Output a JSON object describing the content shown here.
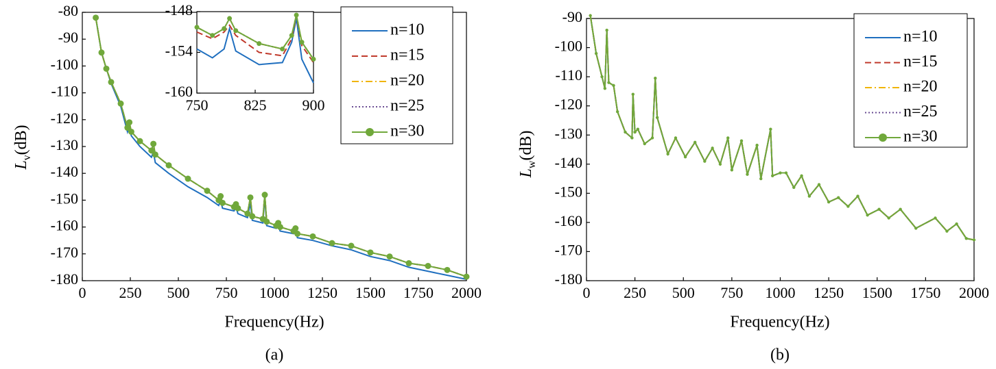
{
  "chart_data": [
    {
      "type": "line",
      "caption": "(a)",
      "x_label": "Frequency(Hz)",
      "y_label": "L",
      "y_label_sub": "v",
      "y_label_unit": "(dB)",
      "xlim": [
        0,
        2000
      ],
      "ylim": [
        -180,
        -80
      ],
      "xticks": [
        0,
        250,
        500,
        750,
        1000,
        1250,
        1500,
        1750,
        2000
      ],
      "yticks": [
        -180,
        -170,
        -160,
        -150,
        -140,
        -130,
        -120,
        -110,
        -100,
        -90,
        -80
      ],
      "legend": "upper right",
      "x": [
        70,
        100,
        125,
        150,
        200,
        235,
        245,
        255,
        300,
        360,
        370,
        380,
        450,
        550,
        650,
        710,
        720,
        730,
        790,
        800,
        810,
        860,
        875,
        885,
        940,
        950,
        960,
        1010,
        1020,
        1030,
        1100,
        1110,
        1120,
        1200,
        1300,
        1400,
        1500,
        1600,
        1700,
        1800,
        1900,
        2000
      ],
      "series": [
        {
          "name": "n=10",
          "color": "#1f6fbf",
          "linestyle": "solid",
          "values": [
            -82,
            -95,
            -101,
            -106.5,
            -115,
            -124.5,
            -122,
            -126,
            -130,
            -134,
            -132,
            -136,
            -140,
            -145,
            -149,
            -152,
            -150,
            -153,
            -154,
            -152.5,
            -155,
            -156.5,
            -151,
            -157.5,
            -158.5,
            -149,
            -159.5,
            -160.5,
            -159.5,
            -161.5,
            -162.5,
            -161.5,
            -164,
            -165,
            -167,
            -168.5,
            -171,
            -172.5,
            -175,
            -176.5,
            -178,
            -179.5
          ]
        },
        {
          "name": "n=15",
          "color": "#c0392b",
          "linestyle": "dashed",
          "values": [
            -82,
            -95,
            -101,
            -106,
            -114,
            -123,
            -121,
            -124.5,
            -128,
            -131.5,
            -129,
            -133,
            -137,
            -142,
            -146.5,
            -150,
            -148.5,
            -151,
            -152.5,
            -151.5,
            -153,
            -155,
            -149,
            -156,
            -157,
            -148,
            -158,
            -159.5,
            -158.5,
            -160,
            -161.5,
            -160.5,
            -162.5,
            -163.5,
            -166,
            -167,
            -169.5,
            -171,
            -173.5,
            -174.5,
            -176,
            -178.5
          ]
        },
        {
          "name": "n=20",
          "color": "#f0b400",
          "linestyle": "dashdot",
          "values": [
            -82,
            -95,
            -101,
            -106,
            -114,
            -123,
            -121,
            -124.5,
            -128,
            -131.5,
            -129,
            -133,
            -137,
            -142,
            -146.5,
            -150,
            -148.5,
            -151,
            -152.5,
            -151.5,
            -153,
            -155,
            -149,
            -156,
            -157,
            -148,
            -158,
            -159.5,
            -158.5,
            -160,
            -161.5,
            -160.5,
            -162.5,
            -163.5,
            -166,
            -167,
            -169.5,
            -171,
            -173.5,
            -174.5,
            -176,
            -178.5
          ]
        },
        {
          "name": "n=25",
          "color": "#6a4c93",
          "linestyle": "dotted",
          "values": [
            -82,
            -95,
            -101,
            -106,
            -114,
            -123,
            -121,
            -124.5,
            -128,
            -131.5,
            -129,
            -133,
            -137,
            -142,
            -146.5,
            -150,
            -148.5,
            -151,
            -152.5,
            -151.5,
            -153,
            -155,
            -149,
            -156,
            -157,
            -148,
            -158,
            -159.5,
            -158.5,
            -160,
            -161.5,
            -160.5,
            -162.5,
            -163.5,
            -166,
            -167,
            -169.5,
            -171,
            -173.5,
            -174.5,
            -176,
            -178.5
          ]
        },
        {
          "name": "n=30",
          "color": "#70a83b",
          "linestyle": "solid",
          "marker": "circle",
          "values": [
            -82,
            -95,
            -101,
            -106,
            -114,
            -123,
            -121,
            -124.5,
            -128,
            -131.5,
            -129,
            -133,
            -137,
            -142,
            -146.5,
            -150,
            -148.5,
            -151,
            -152.5,
            -151.5,
            -153,
            -155,
            -149,
            -156,
            -157,
            -148,
            -158,
            -159.5,
            -158.5,
            -160,
            -161.5,
            -160.5,
            -162.5,
            -163.5,
            -166,
            -167,
            -169.5,
            -171,
            -173.5,
            -174.5,
            -176,
            -178.5
          ]
        }
      ]
    },
    {
      "type": "line",
      "xlim": [
        750,
        900
      ],
      "ylim": [
        -160,
        -148
      ],
      "xticks": [
        750,
        825,
        900
      ],
      "yticks": [
        -160,
        -154,
        -148
      ],
      "x": [
        750,
        770,
        785,
        792,
        800,
        830,
        860,
        872,
        878,
        885,
        900
      ],
      "series": [
        {
          "color": "#1f6fbf",
          "linestyle": "solid",
          "values": [
            -153.5,
            -154.8,
            -153.5,
            -150.5,
            -153.8,
            -155.8,
            -155.5,
            -152.5,
            -149,
            -155,
            -158.5
          ]
        },
        {
          "color": "#c0392b",
          "linestyle": "dashed",
          "values": [
            -151,
            -152,
            -151,
            -150,
            -151.5,
            -154,
            -154.5,
            -152,
            -148.5,
            -153,
            -155.5
          ]
        },
        {
          "color": "#f0b400",
          "linestyle": "dashdot",
          "values": [
            -150.3,
            -151.5,
            -150.5,
            -149,
            -150.8,
            -152.7,
            -153.5,
            -151.5,
            -148.5,
            -152.5,
            -155
          ]
        },
        {
          "color": "#6a4c93",
          "linestyle": "dotted",
          "values": [
            -150.3,
            -151.5,
            -150.5,
            -149,
            -150.8,
            -152.7,
            -153.5,
            -151.5,
            -148.5,
            -152.5,
            -155
          ]
        },
        {
          "color": "#70a83b",
          "linestyle": "solid",
          "marker": "circle",
          "values": [
            -150.3,
            -151.5,
            -150.5,
            -149,
            -150.8,
            -152.7,
            -153.5,
            -151.5,
            -148.5,
            -152.5,
            -155
          ]
        }
      ]
    },
    {
      "type": "line",
      "caption": "(b)",
      "x_label": "Frequency(Hz)",
      "y_label": "L",
      "y_label_sub": "w",
      "y_label_unit": "(dB)",
      "xlim": [
        0,
        2000
      ],
      "ylim": [
        -180,
        -90
      ],
      "xticks": [
        0,
        250,
        500,
        750,
        1000,
        1250,
        1500,
        1750,
        2000
      ],
      "yticks": [
        -180,
        -170,
        -160,
        -150,
        -140,
        -130,
        -120,
        -110,
        -100,
        -90
      ],
      "legend": "upper right",
      "x": [
        20,
        50,
        80,
        95,
        105,
        115,
        140,
        160,
        200,
        235,
        240,
        250,
        265,
        300,
        340,
        355,
        365,
        420,
        460,
        510,
        560,
        610,
        650,
        690,
        730,
        750,
        800,
        830,
        880,
        900,
        950,
        960,
        1000,
        1030,
        1070,
        1110,
        1150,
        1200,
        1250,
        1300,
        1350,
        1400,
        1450,
        1510,
        1560,
        1620,
        1700,
        1800,
        1860,
        1910,
        1960,
        2000
      ],
      "series": [
        {
          "name": "n=10",
          "color": "#1f6fbf",
          "linestyle": "solid",
          "values": [
            -89,
            -102,
            -110,
            -114,
            -94,
            -112,
            -113,
            -122,
            -129,
            -131,
            -116,
            -129,
            -128,
            -133,
            -131,
            -110.5,
            -124,
            -136.5,
            -131,
            -137.5,
            -132.5,
            -139,
            -134.5,
            -140,
            -131,
            -142,
            -132,
            -143.5,
            -133.5,
            -145,
            -128,
            -144,
            -143,
            -143,
            -148,
            -144,
            -151,
            -147,
            -153,
            -151.5,
            -154.5,
            -151,
            -157.5,
            -155.5,
            -158.5,
            -155.5,
            -162,
            -158.5,
            -163,
            -160.5,
            -165.5,
            -166
          ]
        },
        {
          "name": "n=15",
          "color": "#c0392b",
          "linestyle": "dashed",
          "values": [
            -89,
            -102,
            -110,
            -114,
            -94,
            -112,
            -113,
            -122,
            -129,
            -131,
            -116,
            -129,
            -128,
            -133,
            -131,
            -110.5,
            -124,
            -136.5,
            -131,
            -137.5,
            -132.5,
            -139,
            -134.5,
            -140,
            -131,
            -142,
            -132,
            -143.5,
            -133.5,
            -145,
            -128,
            -144,
            -143,
            -143,
            -148,
            -144,
            -151,
            -147,
            -153,
            -151.5,
            -154.5,
            -151,
            -157.5,
            -155.5,
            -158.5,
            -155.5,
            -162,
            -158.5,
            -163,
            -160.5,
            -165.5,
            -166
          ]
        },
        {
          "name": "n=20",
          "color": "#f0b400",
          "linestyle": "dashdot",
          "values": [
            -89,
            -102,
            -110,
            -114,
            -94,
            -112,
            -113,
            -122,
            -129,
            -131,
            -116,
            -129,
            -128,
            -133,
            -131,
            -110.5,
            -124,
            -136.5,
            -131,
            -137.5,
            -132.5,
            -139,
            -134.5,
            -140,
            -131,
            -142,
            -132,
            -143.5,
            -133.5,
            -145,
            -128,
            -144,
            -143,
            -143,
            -148,
            -144,
            -151,
            -147,
            -153,
            -151.5,
            -154.5,
            -151,
            -157.5,
            -155.5,
            -158.5,
            -155.5,
            -162,
            -158.5,
            -163,
            -160.5,
            -165.5,
            -166
          ]
        },
        {
          "name": "n=25",
          "color": "#6a4c93",
          "linestyle": "dotted",
          "values": [
            -89,
            -102,
            -110,
            -114,
            -94,
            -112,
            -113,
            -122,
            -129,
            -131,
            -116,
            -129,
            -128,
            -133,
            -131,
            -110.5,
            -124,
            -136.5,
            -131,
            -137.5,
            -132.5,
            -139,
            -134.5,
            -140,
            -131,
            -142,
            -132,
            -143.5,
            -133.5,
            -145,
            -128,
            -144,
            -143,
            -143,
            -148,
            -144,
            -151,
            -147,
            -153,
            -151.5,
            -154.5,
            -151,
            -157.5,
            -155.5,
            -158.5,
            -155.5,
            -162,
            -158.5,
            -163,
            -160.5,
            -165.5,
            -166
          ]
        },
        {
          "name": "n=30",
          "color": "#70a83b",
          "linestyle": "solid",
          "marker": "circle",
          "values": [
            -89,
            -102,
            -110,
            -114,
            -94,
            -112,
            -113,
            -122,
            -129,
            -131,
            -116,
            -129,
            -128,
            -133,
            -131,
            -110.5,
            -124,
            -136.5,
            -131,
            -137.5,
            -132.5,
            -139,
            -134.5,
            -140,
            -131,
            -142,
            -132,
            -143.5,
            -133.5,
            -145,
            -128,
            -144,
            -143,
            -143,
            -148,
            -144,
            -151,
            -147,
            -153,
            -151.5,
            -154.5,
            -151,
            -157.5,
            -155.5,
            -158.5,
            -155.5,
            -162,
            -158.5,
            -163,
            -160.5,
            -165.5,
            -166
          ]
        }
      ]
    }
  ]
}
